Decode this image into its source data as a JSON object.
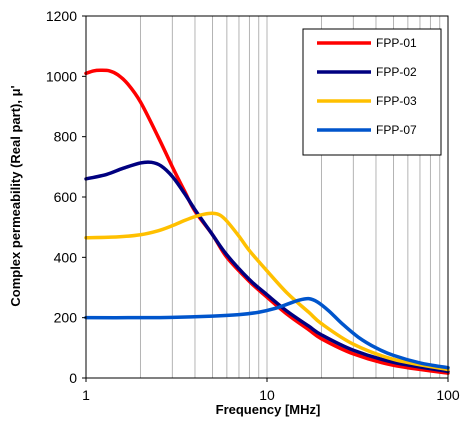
{
  "chart_data": {
    "type": "line",
    "xlabel": "Frequency [MHz]",
    "ylabel": "Complex permeability (Real part), μ'",
    "xscale": "log",
    "xlim": [
      1,
      100
    ],
    "ylim": [
      0,
      1200
    ],
    "x_ticks": [
      {
        "value": 1,
        "label": "1"
      },
      {
        "value": 10,
        "label": "10"
      },
      {
        "value": 100,
        "label": "100"
      }
    ],
    "y_ticks": [
      {
        "value": 0,
        "label": "0"
      },
      {
        "value": 200,
        "label": "200"
      },
      {
        "value": 400,
        "label": "400"
      },
      {
        "value": 600,
        "label": "600"
      },
      {
        "value": 800,
        "label": "800"
      },
      {
        "value": 1000,
        "label": "1000"
      },
      {
        "value": 1200,
        "label": "1200"
      }
    ],
    "grid": "vertical minor log gridlines",
    "legend": "top-right",
    "series": [
      {
        "name": "FPP-01",
        "color": "#ff0000",
        "x": [
          1,
          1.1,
          1.2,
          1.35,
          1.5,
          1.7,
          2,
          2.5,
          3,
          3.5,
          4,
          5,
          6,
          8,
          10,
          13,
          17,
          20,
          30,
          50,
          100
        ],
        "y": [
          1010,
          1018,
          1020,
          1018,
          1005,
          975,
          915,
          800,
          700,
          620,
          553,
          475,
          400,
          320,
          268,
          210,
          160,
          130,
          80,
          42,
          16
        ]
      },
      {
        "name": "FPP-02",
        "color": "#000080",
        "x": [
          1,
          1.3,
          1.6,
          2,
          2.3,
          2.6,
          3,
          3.5,
          4,
          5,
          6,
          8,
          10,
          13,
          17,
          20,
          30,
          50,
          100
        ],
        "y": [
          660,
          675,
          695,
          713,
          715,
          703,
          668,
          612,
          558,
          475,
          408,
          326,
          276,
          220,
          172,
          143,
          92,
          52,
          22
        ]
      },
      {
        "name": "FPP-03",
        "color": "#ffc000",
        "x": [
          1,
          1.5,
          2,
          2.5,
          3,
          3.5,
          4,
          4.5,
          5,
          5.5,
          6,
          7,
          8,
          10,
          13,
          17,
          20,
          30,
          50,
          100
        ],
        "y": [
          465,
          468,
          475,
          488,
          505,
          522,
          535,
          543,
          546,
          540,
          520,
          470,
          422,
          355,
          280,
          218,
          180,
          112,
          62,
          28
        ]
      },
      {
        "name": "FPP-07",
        "color": "#0055cc",
        "x": [
          1,
          2,
          3,
          5,
          7,
          9,
          11,
          13,
          15,
          17,
          19,
          22,
          26,
          32,
          40,
          50,
          70,
          100
        ],
        "y": [
          200,
          200,
          201,
          205,
          210,
          218,
          230,
          245,
          258,
          263,
          252,
          222,
          180,
          135,
          100,
          75,
          50,
          34
        ]
      }
    ]
  }
}
